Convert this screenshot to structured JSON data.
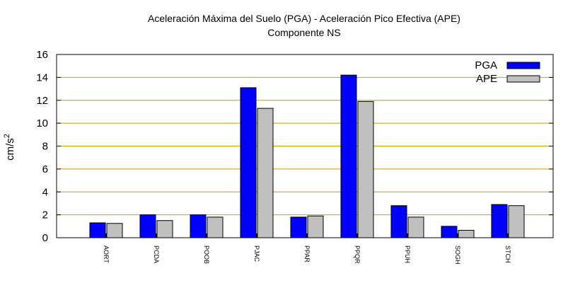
{
  "chart_data": {
    "type": "bar",
    "title": "Aceleración Máxima del Suelo (PGA) -  Aceleración Pico Efectiva (APE)",
    "subtitle": "Componente NS",
    "ylabel": "cm/s",
    "ylabel_superscript": "2",
    "xlabel": "",
    "ylim": [
      0,
      16
    ],
    "yticks": [
      "0",
      "2",
      "4",
      "6",
      "8",
      "10",
      "12",
      "14",
      "16"
    ],
    "grid": "horizontal",
    "legend_position": "top-right",
    "categories": [
      "AORT",
      "PCDA",
      "POOB",
      "PJAC",
      "PPAR",
      "PPQR",
      "PPUH",
      "SOGH",
      "STCH"
    ],
    "series": [
      {
        "name": "PGA",
        "color": "#0000ff",
        "values": [
          1.3,
          2.0,
          2.0,
          13.1,
          1.8,
          14.2,
          2.8,
          1.0,
          2.9
        ]
      },
      {
        "name": "APE",
        "color": "#c0c0c0",
        "values": [
          1.25,
          1.5,
          1.8,
          11.3,
          1.9,
          11.9,
          1.8,
          0.65,
          2.8
        ]
      }
    ],
    "grid_color": "#c8a000"
  }
}
